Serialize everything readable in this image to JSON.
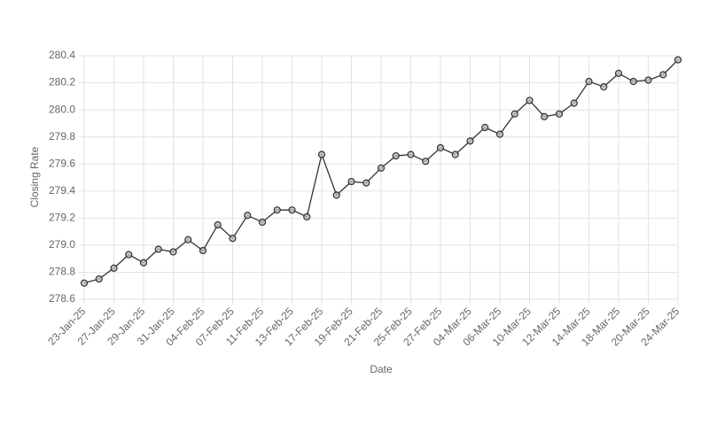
{
  "chart_data": {
    "type": "line",
    "x_label": "Date",
    "y_label": "Closing Rate",
    "categories": [
      "23-Jan-25",
      null,
      "27-Jan-25",
      null,
      "29-Jan-25",
      null,
      "31-Jan-25",
      null,
      "04-Feb-25",
      null,
      "07-Feb-25",
      null,
      "11-Feb-25",
      null,
      "13-Feb-25",
      null,
      "17-Feb-25",
      null,
      "19-Feb-25",
      null,
      "21-Feb-25",
      null,
      "25-Feb-25",
      null,
      "27-Feb-25",
      null,
      "04-Mar-25",
      null,
      "06-Mar-25",
      null,
      "10-Mar-25",
      null,
      "12-Mar-25",
      null,
      "14-Mar-25",
      null,
      "18-Mar-25",
      null,
      "20-Mar-25",
      null,
      "24-Mar-25"
    ],
    "series": [
      {
        "color": "#333333",
        "values": [
          278.72,
          278.75,
          278.83,
          278.93,
          278.87,
          278.97,
          278.95,
          279.04,
          278.96,
          279.15,
          279.05,
          279.22,
          279.17,
          279.26,
          279.26,
          279.21,
          279.67,
          279.37,
          279.47,
          279.46,
          279.57,
          279.66,
          279.67,
          279.62,
          279.72,
          279.67,
          279.77,
          279.87,
          279.82,
          279.97,
          280.07,
          279.95,
          279.97,
          280.05,
          280.21,
          280.17,
          280.27,
          280.21,
          280.22,
          280.26,
          280.37
        ]
      }
    ],
    "ylim": [
      278.6,
      280.4
    ],
    "yticks": [
      278.6,
      278.8,
      {
        "value": 279.0,
        "label": "279.0"
      },
      279.2,
      279.4,
      279.6,
      279.8,
      {
        "value": 280.0,
        "label": "280.0"
      },
      280.2,
      280.4
    ],
    "grid": true
  }
}
